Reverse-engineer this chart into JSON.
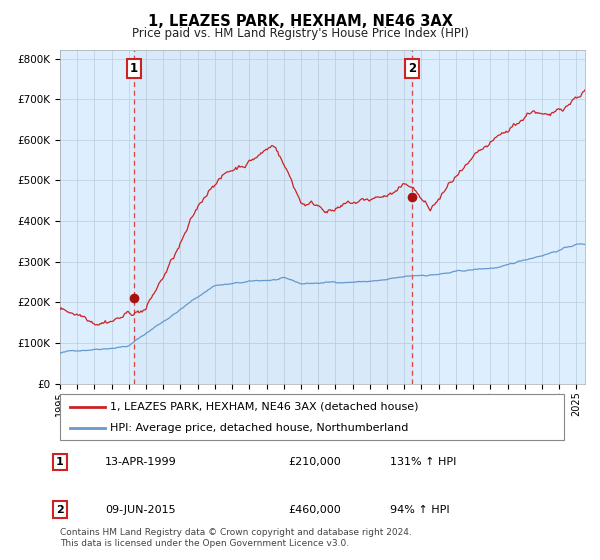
{
  "title": "1, LEAZES PARK, HEXHAM, NE46 3AX",
  "subtitle": "Price paid vs. HM Land Registry's House Price Index (HPI)",
  "hpi_label": "HPI: Average price, detached house, Northumberland",
  "property_label": "1, LEAZES PARK, HEXHAM, NE46 3AX (detached house)",
  "sale1_date": "13-APR-1999",
  "sale1_price": 210000,
  "sale1_hpi_pct": "131% ↑ HPI",
  "sale2_date": "09-JUN-2015",
  "sale2_price": 460000,
  "sale2_hpi_pct": "94% ↑ HPI",
  "sale1_year": 1999.28,
  "sale2_year": 2015.44,
  "ylim": [
    0,
    820000
  ],
  "xlim_start": 1995,
  "xlim_end": 2025.5,
  "hpi_color": "#6699cc",
  "property_color": "#cc2222",
  "sale_dot_color": "#aa1111",
  "vline_color": "#dd4444",
  "background_color": "#ddeeff",
  "grid_color": "#bbccdd",
  "footer_text": "Contains HM Land Registry data © Crown copyright and database right 2024.\nThis data is licensed under the Open Government Licence v3.0.",
  "yticks": [
    0,
    100000,
    200000,
    300000,
    400000,
    500000,
    600000,
    700000,
    800000
  ],
  "ytick_labels": [
    "£0",
    "£100K",
    "£200K",
    "£300K",
    "£400K",
    "£500K",
    "£600K",
    "£700K",
    "£800K"
  ]
}
